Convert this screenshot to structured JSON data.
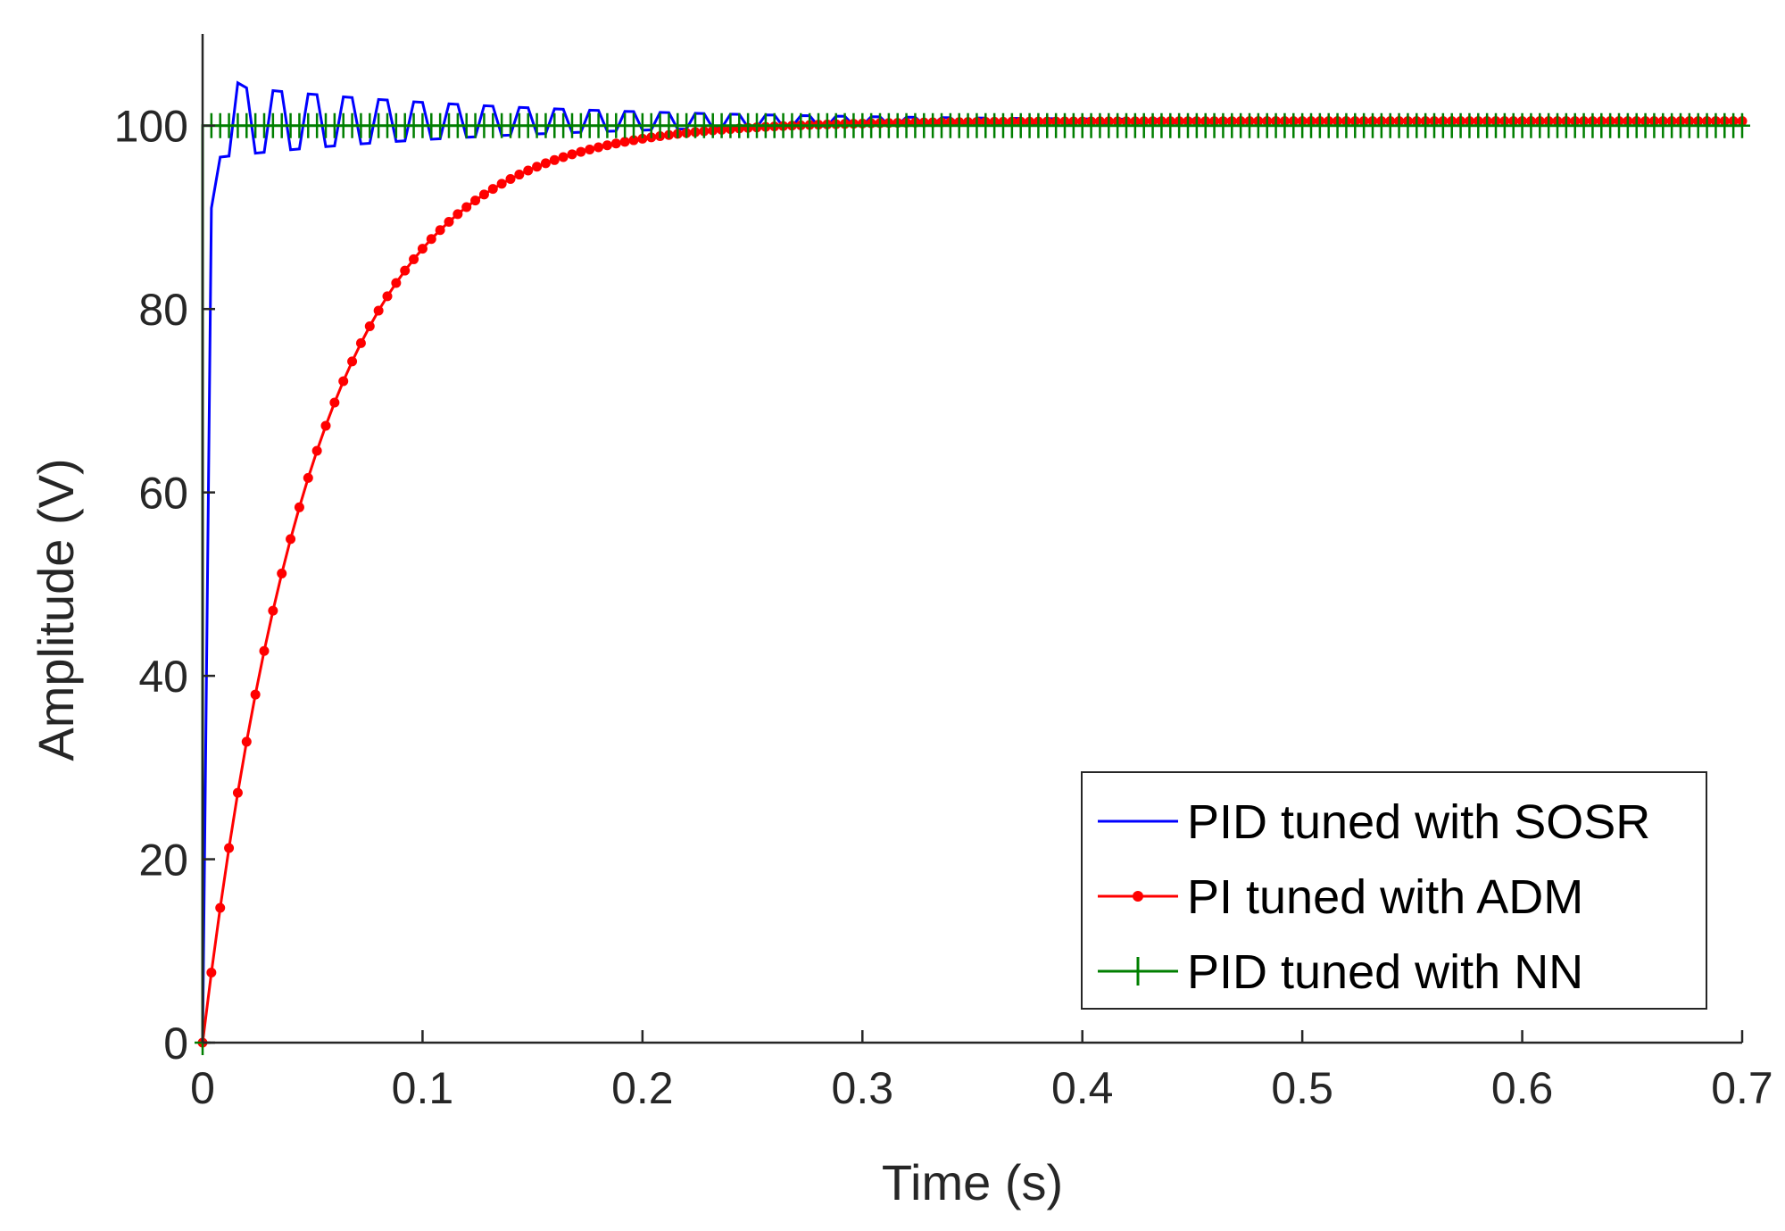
{
  "chart_data": {
    "type": "line",
    "title": "",
    "xlabel": "Time (s)",
    "ylabel": "Amplitude (V)",
    "xlim": [
      0,
      0.7
    ],
    "ylim": [
      0,
      110
    ],
    "xticks": [
      0,
      0.1,
      0.2,
      0.3,
      0.4,
      0.5,
      0.6,
      0.7
    ],
    "xtick_labels": [
      "0",
      "0.1",
      "0.2",
      "0.3",
      "0.4",
      "0.5",
      "0.6",
      "0.7"
    ],
    "yticks": [
      0,
      20,
      40,
      60,
      80,
      100
    ],
    "ytick_labels": [
      "0",
      "20",
      "40",
      "60",
      "80",
      "100"
    ],
    "grid": false,
    "legend_position": "bottom-right",
    "series": [
      {
        "name": "PID tuned with SOSR",
        "color": "#0000ff",
        "marker": "none",
        "model": "damped-oscillation",
        "x_start": 0,
        "x_end": 0.7,
        "sample_step": 0.004,
        "rise_time": 0.004,
        "initial_level": 91,
        "first_peak": 105,
        "final_value": 100.5,
        "envelope_decay_s": 0.14
      },
      {
        "name": "PI tuned with ADM",
        "color": "#ff0000",
        "marker": "dot",
        "model": "first-order",
        "x_start": 0,
        "x_end": 0.7,
        "sample_step": 0.004,
        "time_constant_s": 0.0506,
        "final_value": 100.5
      },
      {
        "name": "PID tuned with NN",
        "color": "#007f00",
        "marker": "plus",
        "model": "step",
        "x_start": 0,
        "x_end": 0.7,
        "sample_step": 0.004,
        "initial_value": 0,
        "final_value": 100
      }
    ]
  }
}
